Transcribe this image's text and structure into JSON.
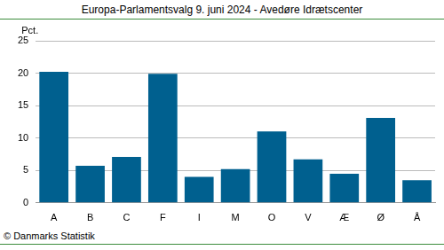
{
  "chart_data": {
    "type": "bar",
    "title": "Europa-Parlamentsvalg 9. juni 2024 - Avedøre Idrætscenter",
    "ylabel": "Pct.",
    "source": "© Danmarks Statistik",
    "categories": [
      "A",
      "B",
      "C",
      "F",
      "I",
      "M",
      "O",
      "V",
      "Æ",
      "Ø",
      "Å"
    ],
    "values": [
      20.2,
      5.7,
      7.1,
      19.9,
      4.0,
      5.2,
      11.0,
      6.7,
      4.5,
      13.1,
      3.5
    ],
    "color": "#00608f",
    "ylim": [
      0,
      25
    ],
    "yticks": [
      0,
      5,
      10,
      15,
      20,
      25
    ],
    "grid": true
  }
}
